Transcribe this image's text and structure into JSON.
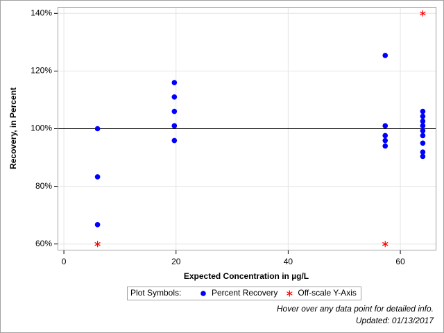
{
  "chart_data": {
    "type": "scatter",
    "x_label": "Expected Concentration in µg/L",
    "y_label": "Recovery, in Percent",
    "xlim": [
      -1,
      66.3
    ],
    "ylim": [
      58,
      142
    ],
    "xticks": [
      0,
      20,
      40,
      60
    ],
    "yticks": [
      {
        "value": 60,
        "label": "60%"
      },
      {
        "value": 80,
        "label": "80%"
      },
      {
        "value": 100,
        "label": "100%"
      },
      {
        "value": 120,
        "label": "120%"
      },
      {
        "value": 140,
        "label": "140%"
      }
    ],
    "grid": true,
    "reference_line": 100,
    "legend_title": "Plot Symbols:",
    "series": [
      {
        "name": "Percent Recovery",
        "color": "#0000ff",
        "marker": "circle",
        "x": [
          6,
          6,
          6,
          19.7,
          19.7,
          19.7,
          19.7,
          19.7,
          57.3,
          57.3,
          57.3,
          57.3,
          57.3,
          64,
          64,
          64,
          64,
          64,
          64,
          64,
          64,
          64
        ],
        "values": [
          100,
          83.3,
          66.7,
          116,
          111,
          106,
          101,
          95.9,
          125.4,
          101,
          97.6,
          95.9,
          94,
          106,
          104.3,
          102.6,
          101,
          99.3,
          97.6,
          95,
          91.9,
          90.4
        ]
      },
      {
        "name": "Off-scale Y-Axis",
        "color": "#ff0000",
        "marker": "asterisk",
        "x": [
          6,
          57.3,
          64
        ],
        "values": [
          60,
          60,
          140
        ]
      }
    ],
    "footnotes": [
      "Hover over any data point for detailed info.",
      "Updated: 01/13/2017"
    ]
  }
}
